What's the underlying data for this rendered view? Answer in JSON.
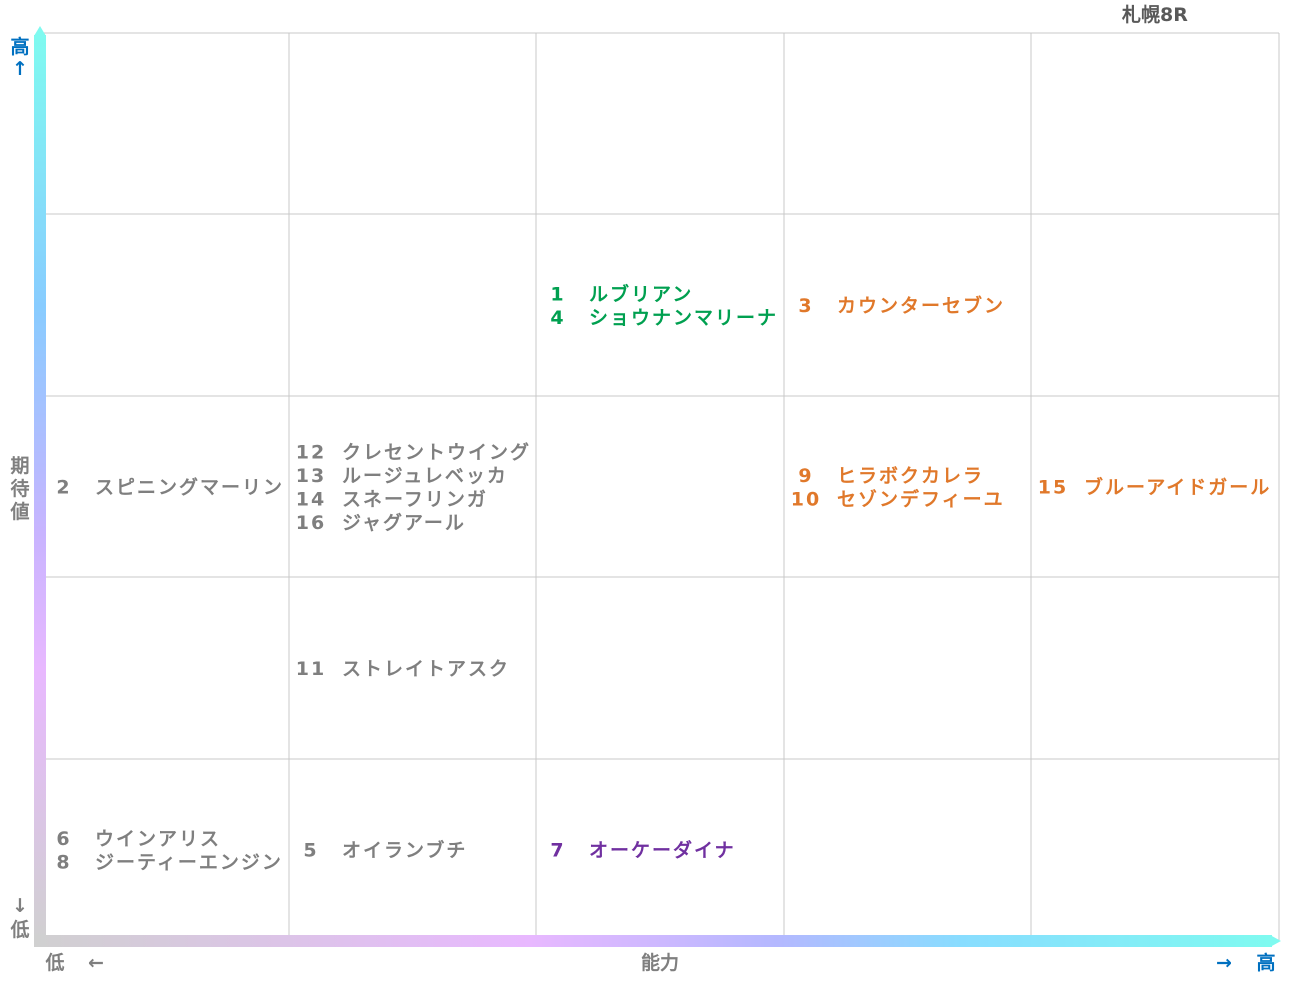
{
  "race_title": "札幌8R",
  "y_axis": {
    "high_label": "高",
    "high_arrow": "↑",
    "title_chars": [
      "期",
      "待",
      "値"
    ],
    "low_arrow": "↓",
    "low_label": "低"
  },
  "x_axis": {
    "low_label": "低",
    "low_arrow": "←",
    "title": "能力",
    "high_arrow": "→",
    "high_label": "高"
  },
  "colors": {
    "grey_text": "#7f7f7f",
    "green_text": "#00a050",
    "orange_text": "#e0782a",
    "purple_text": "#7030a0",
    "axis_blue": "#0070c0",
    "grid_line": "#c8c8c8"
  },
  "chart_data": {
    "type": "table",
    "columns": 5,
    "rows": 5,
    "x_label": "能力",
    "y_label": "期待値",
    "cells": [
      {
        "col": 3,
        "row": 2,
        "color": "green",
        "entries": [
          {
            "num": "1",
            "name": "ルブリアン"
          },
          {
            "num": "4",
            "name": "ショウナンマリーナ"
          }
        ]
      },
      {
        "col": 4,
        "row": 2,
        "color": "orange",
        "entries": [
          {
            "num": "3",
            "name": "カウンターセブン"
          }
        ]
      },
      {
        "col": 1,
        "row": 3,
        "color": "grey",
        "entries": [
          {
            "num": "2",
            "name": "スピニングマーリン"
          }
        ]
      },
      {
        "col": 2,
        "row": 3,
        "color": "grey",
        "entries": [
          {
            "num": "12",
            "name": "クレセントウイング"
          },
          {
            "num": "13",
            "name": "ルージュレベッカ"
          },
          {
            "num": "14",
            "name": "スネーフリンガ"
          },
          {
            "num": "16",
            "name": "ジャグアール"
          }
        ]
      },
      {
        "col": 4,
        "row": 3,
        "color": "orange",
        "entries": [
          {
            "num": "9",
            "name": "ヒラボクカレラ"
          },
          {
            "num": "10",
            "name": "セゾンデフィーユ"
          }
        ]
      },
      {
        "col": 5,
        "row": 3,
        "color": "orange",
        "entries": [
          {
            "num": "15",
            "name": "ブルーアイドガール"
          }
        ]
      },
      {
        "col": 2,
        "row": 4,
        "color": "grey",
        "entries": [
          {
            "num": "11",
            "name": "ストレイトアスク"
          }
        ]
      },
      {
        "col": 1,
        "row": 5,
        "color": "grey",
        "entries": [
          {
            "num": "6",
            "name": "ウインアリス"
          },
          {
            "num": "8",
            "name": "ジーティーエンジン"
          }
        ]
      },
      {
        "col": 2,
        "row": 5,
        "color": "grey",
        "entries": [
          {
            "num": "5",
            "name": "オイランブチ"
          }
        ]
      },
      {
        "col": 3,
        "row": 5,
        "color": "purple",
        "entries": [
          {
            "num": "7",
            "name": "オーケーダイナ"
          }
        ]
      }
    ]
  }
}
